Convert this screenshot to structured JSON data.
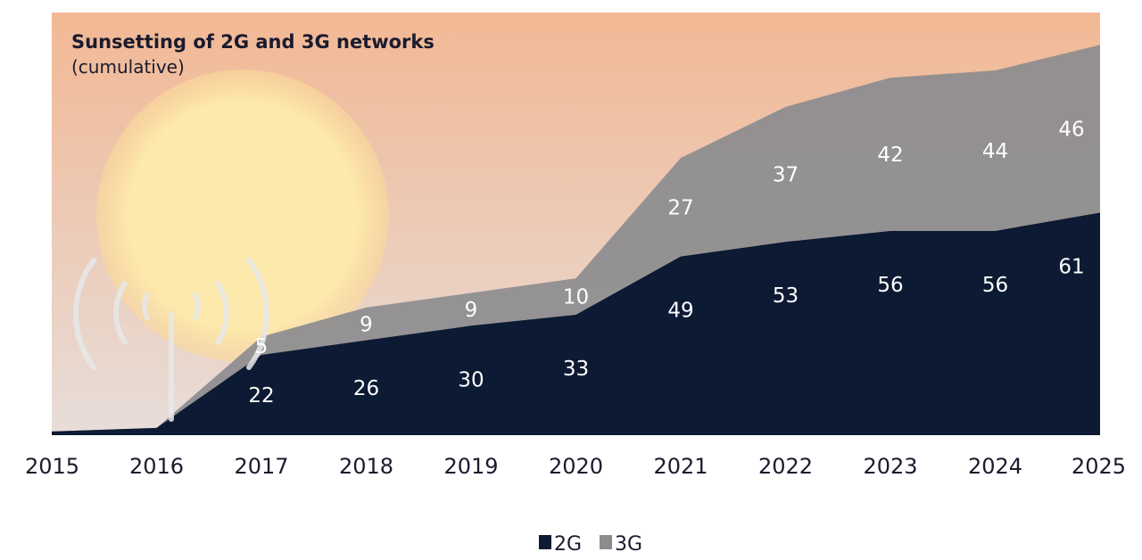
{
  "chart_data": {
    "type": "area",
    "title": "Sunsetting of 2G and 3G networks",
    "subtitle": "(cumulative)",
    "x": [
      "2015",
      "2016",
      "2017",
      "2018",
      "2019",
      "2020",
      "2021",
      "2022",
      "2023",
      "2024",
      "2025"
    ],
    "stacked": true,
    "series": [
      {
        "name": "2G",
        "color": "#0c1a33",
        "values": [
          1,
          2,
          22,
          26,
          30,
          33,
          49,
          53,
          56,
          56,
          61
        ],
        "labels": [
          null,
          null,
          "22",
          "26",
          "30",
          "33",
          "49",
          "53",
          "56",
          "56",
          "61"
        ]
      },
      {
        "name": "3G",
        "color": "#8c8c8f",
        "values": [
          0,
          0,
          5,
          9,
          9,
          10,
          27,
          37,
          42,
          44,
          46
        ],
        "labels": [
          null,
          null,
          "5",
          "9",
          "9",
          "10",
          "27",
          "37",
          "42",
          "44",
          "46"
        ]
      }
    ],
    "legend": {
      "placement": "bottom-center"
    },
    "background": {
      "sky_top": "#f2b894",
      "sky_bottom": "#e9d9d2",
      "sun": "#fde7a6"
    }
  }
}
